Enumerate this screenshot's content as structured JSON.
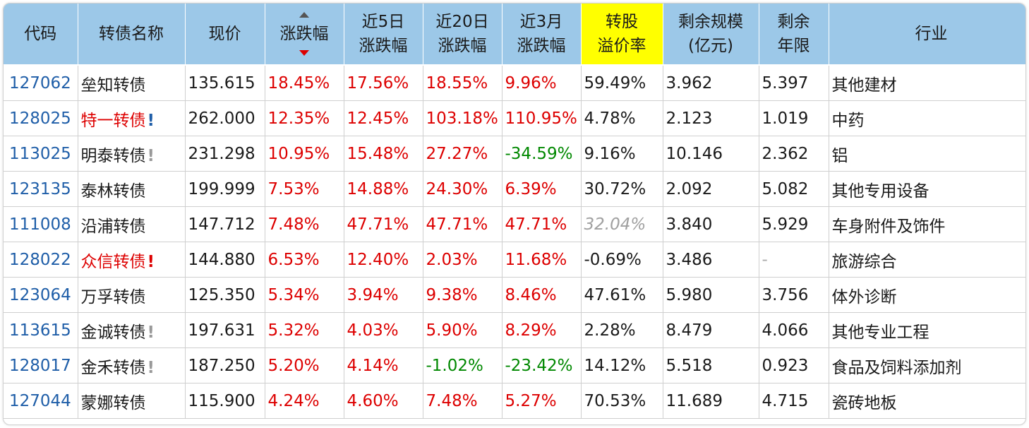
{
  "headers": {
    "code": "代码",
    "name": "转债名称",
    "price": "现价",
    "change": "涨跌幅",
    "d5_line1": "近5日",
    "d5_line2": "涨跌幅",
    "d20_line1": "近20日",
    "d20_line2": "涨跌幅",
    "m3_line1": "近3月",
    "m3_line2": "涨跌幅",
    "premium_line1": "转股",
    "premium_line2": "溢价率",
    "size_line1": "剩余规模",
    "size_line2": "(亿元)",
    "years_line1": "剩余",
    "years_line2": "年限",
    "industry": "行业"
  },
  "sort_icon": "sort-desc-icon",
  "colors": {
    "header_bg": "#9cc8e8",
    "highlight": "#ffff00",
    "up": "#dd0000",
    "down": "#008800",
    "code": "#1f5ea8"
  },
  "rows": [
    {
      "code": "127062",
      "name": "垒知转债",
      "mark": "",
      "name_color": "normal",
      "price": "135.615",
      "change": "18.45%",
      "change_c": "red",
      "d5": "17.56%",
      "d5_c": "red",
      "d20": "18.55%",
      "d20_c": "red",
      "m3": "9.96%",
      "m3_c": "red",
      "premium": "59.49%",
      "premium_c": "normal",
      "size": "3.962",
      "years": "5.397",
      "industry": "其他建材"
    },
    {
      "code": "128025",
      "name": "特一转债",
      "mark": "!",
      "mark_c": "blue",
      "name_color": "red",
      "price": "262.000",
      "change": "12.35%",
      "change_c": "red",
      "d5": "12.45%",
      "d5_c": "red",
      "d20": "103.18%",
      "d20_c": "red",
      "m3": "110.95%",
      "m3_c": "red",
      "premium": "4.78%",
      "premium_c": "normal",
      "size": "2.123",
      "years": "1.019",
      "industry": "中药"
    },
    {
      "code": "113025",
      "name": "明泰转债",
      "mark": "!",
      "mark_c": "gray",
      "name_color": "normal",
      "price": "231.298",
      "change": "10.95%",
      "change_c": "red",
      "d5": "15.48%",
      "d5_c": "red",
      "d20": "27.27%",
      "d20_c": "red",
      "m3": "-34.59%",
      "m3_c": "green",
      "premium": "9.16%",
      "premium_c": "normal",
      "size": "10.146",
      "years": "2.362",
      "industry": "铝"
    },
    {
      "code": "123135",
      "name": "泰林转债",
      "mark": "",
      "name_color": "normal",
      "price": "199.999",
      "change": "7.53%",
      "change_c": "red",
      "d5": "14.88%",
      "d5_c": "red",
      "d20": "24.30%",
      "d20_c": "red",
      "m3": "6.39%",
      "m3_c": "red",
      "premium": "30.72%",
      "premium_c": "normal",
      "size": "2.092",
      "years": "5.082",
      "industry": "其他专用设备"
    },
    {
      "code": "111008",
      "name": "沿浦转债",
      "mark": "",
      "name_color": "normal",
      "price": "147.712",
      "change": "7.48%",
      "change_c": "red",
      "d5": "47.71%",
      "d5_c": "red",
      "d20": "47.71%",
      "d20_c": "red",
      "m3": "47.71%",
      "m3_c": "red",
      "premium": "32.04%",
      "premium_c": "gray",
      "size": "3.840",
      "years": "5.929",
      "industry": "车身附件及饰件"
    },
    {
      "code": "128022",
      "name": "众信转债",
      "mark": "!",
      "mark_c": "red",
      "name_color": "red",
      "price": "144.880",
      "change": "6.53%",
      "change_c": "red",
      "d5": "12.40%",
      "d5_c": "red",
      "d20": "2.03%",
      "d20_c": "red",
      "m3": "11.68%",
      "m3_c": "red",
      "premium": "-0.69%",
      "premium_c": "normal",
      "size": "3.486",
      "years": "-",
      "years_c": "dash",
      "industry": "旅游综合"
    },
    {
      "code": "123064",
      "name": "万孚转债",
      "mark": "",
      "name_color": "normal",
      "price": "125.350",
      "change": "5.34%",
      "change_c": "red",
      "d5": "3.94%",
      "d5_c": "red",
      "d20": "9.38%",
      "d20_c": "red",
      "m3": "8.46%",
      "m3_c": "red",
      "premium": "47.61%",
      "premium_c": "normal",
      "size": "5.980",
      "years": "3.756",
      "industry": "体外诊断"
    },
    {
      "code": "113615",
      "name": "金诚转债",
      "mark": "!",
      "mark_c": "gray",
      "name_color": "normal",
      "price": "197.631",
      "change": "5.32%",
      "change_c": "red",
      "d5": "4.03%",
      "d5_c": "red",
      "d20": "5.90%",
      "d20_c": "red",
      "m3": "8.29%",
      "m3_c": "red",
      "premium": "2.28%",
      "premium_c": "normal",
      "size": "8.479",
      "years": "4.066",
      "industry": "其他专业工程"
    },
    {
      "code": "128017",
      "name": "金禾转债",
      "mark": "!",
      "mark_c": "gray",
      "name_color": "normal",
      "price": "187.250",
      "change": "5.20%",
      "change_c": "red",
      "d5": "4.14%",
      "d5_c": "red",
      "d20": "-1.02%",
      "d20_c": "green",
      "m3": "-23.42%",
      "m3_c": "green",
      "premium": "14.12%",
      "premium_c": "normal",
      "size": "5.518",
      "years": "0.923",
      "industry": "食品及饲料添加剂"
    },
    {
      "code": "127044",
      "name": "蒙娜转债",
      "mark": "",
      "name_color": "normal",
      "price": "115.900",
      "change": "4.24%",
      "change_c": "red",
      "d5": "4.60%",
      "d5_c": "red",
      "d20": "7.48%",
      "d20_c": "red",
      "m3": "5.27%",
      "m3_c": "red",
      "premium": "70.53%",
      "premium_c": "normal",
      "size": "11.689",
      "years": "4.715",
      "industry": "瓷砖地板"
    }
  ]
}
